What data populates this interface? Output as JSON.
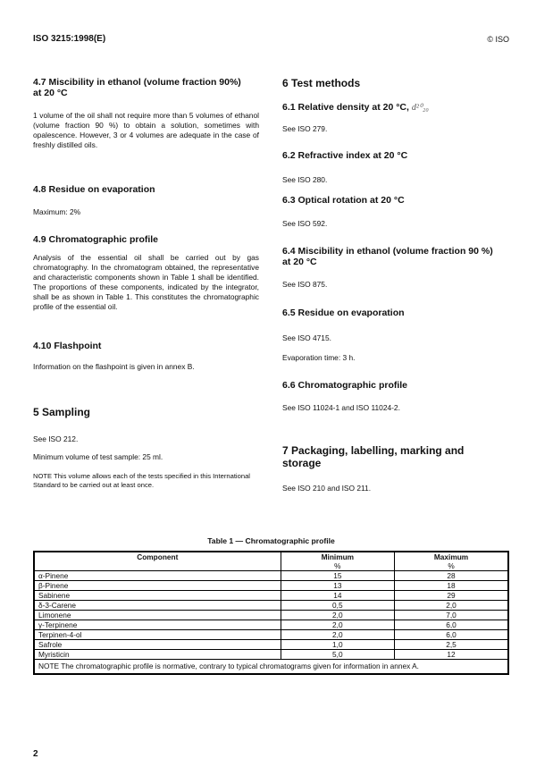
{
  "header": {
    "doc_id": "ISO 3215:1998(E)",
    "copyright": "© ISO"
  },
  "left": {
    "s47_title": "4.7  Miscibility in ethanol (volume fraction 90%) at 20 °C",
    "s47_body": "1 volume of the oil shall not require more than 5 volumes of ethanol (volume fraction 90 %) to obtain a solution, sometimes with opalescence. However, 3 or 4 volumes are adequate in the case of freshly distilled oils.",
    "s48_title": "4.8  Residue on evaporation",
    "s48_body": "Maximum: 2%",
    "s49_title": "4.9  Chromatographic profile",
    "s49_body": "Analysis of the essential oil shall be carried out by gas chromatography. In the chromatogram obtained, the representative and characteristic components shown in Table 1 shall be identified. The proportions of these components, indicated by the integrator, shall be as shown in Table 1. This constitutes the chromatographic profile of the essential oil.",
    "s410_title": "4.10  Flashpoint",
    "s410_body": "Information on the flashpoint is given in annex B.",
    "s5_title": "5  Sampling",
    "s5_body1": "See ISO 212.",
    "s5_body2": "Minimum volume of test sample: 25 ml.",
    "s5_note": "NOTE      This volume allows each of the tests specified in this International Standard to be carried out at least once."
  },
  "right": {
    "s6_title": "6  Test methods",
    "s61_title": "6.1  Relative density at 20 °C, ",
    "s61_symbol": "d²⁰₂₀",
    "s61_body": "See ISO 279.",
    "s62_title": "6.2  Refractive index at 20 °C",
    "s62_body": "See ISO 280.",
    "s63_title": "6.3  Optical rotation at 20 °C",
    "s63_body": "See ISO 592.",
    "s64_title": "6.4  Miscibility in ethanol (volume fraction 90 %) at 20 °C",
    "s64_body": "See ISO 875.",
    "s65_title": "6.5  Residue on evaporation",
    "s65_body1": "See ISO 4715.",
    "s65_body2": "Evaporation time: 3 h.",
    "s66_title": "6.6  Chromatographic profile",
    "s66_body": "See ISO 11024-1 and ISO 11024-2.",
    "s7_title": "7  Packaging, labelling, marking and storage",
    "s7_body": "See ISO 210 and ISO 211."
  },
  "table": {
    "title": "Table 1 — Chromatographic profile",
    "headers": [
      "Component",
      "Minimum",
      "Maximum"
    ],
    "unit": "%",
    "rows": [
      [
        "α-Pinene",
        "15",
        "28"
      ],
      [
        "β-Pinene",
        "13",
        "18"
      ],
      [
        "Sabinene",
        "14",
        "29"
      ],
      [
        "δ-3-Carene",
        "0,5",
        "2,0"
      ],
      [
        "Limonene",
        "2,0",
        "7,0"
      ],
      [
        "γ-Terpinene",
        "2,0",
        "6,0"
      ],
      [
        "Terpinen-4-ol",
        "2,0",
        "6,0"
      ],
      [
        "Safrole",
        "1,0",
        "2,5"
      ],
      [
        "Myristicin",
        "5,0",
        "12"
      ]
    ],
    "note": "NOTE    The chromatographic profile is normative, contrary to typical chromatograms given for information in annex A."
  },
  "footer": {
    "page_number": "2"
  }
}
